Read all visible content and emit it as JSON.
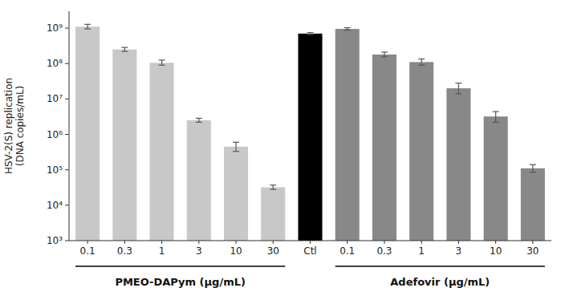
{
  "chart_data": {
    "type": "bar",
    "categories": [
      "0.1",
      "0.3",
      "1",
      "3",
      "10",
      "30",
      "Ctl",
      "0.1",
      "0.3",
      "1",
      "3",
      "10",
      "30"
    ],
    "values": [
      1100000000.0,
      250000000.0,
      105000000.0,
      2500000.0,
      450000.0,
      32000.0,
      700000000.0,
      950000000.0,
      180000000.0,
      110000000.0,
      20000000.0,
      3200000.0,
      110000.0
    ],
    "error_upper": [
      180000000.0,
      35000000.0,
      20000000.0,
      350000.0,
      150000.0,
      5000.0,
      50000000.0,
      80000000.0,
      30000000.0,
      25000000.0,
      8000000.0,
      1200000.0,
      30000.0
    ],
    "error_lower": [
      150000000.0,
      30000000.0,
      15000000.0,
      300000.0,
      120000.0,
      4000.0,
      40000000.0,
      70000000.0,
      25000000.0,
      20000000.0,
      6000000.0,
      1000000.0,
      25000.0
    ],
    "colors": [
      "#c8c8c8",
      "#c8c8c8",
      "#c8c8c8",
      "#c8c8c8",
      "#c8c8c8",
      "#c8c8c8",
      "#000000",
      "#888888",
      "#888888",
      "#888888",
      "#888888",
      "#888888",
      "#888888"
    ],
    "y_label": "HSV-2(S) replication\n(DNA copies/mL)",
    "log": "y",
    "ylim": [
      1000,
      3000000000.0
    ],
    "yticks": [
      {
        "value": 1000,
        "label": "10³"
      },
      {
        "value": 10000,
        "label": "10⁴"
      },
      {
        "value": 100000,
        "label": "10⁵"
      },
      {
        "value": 1000000,
        "label": "10⁶"
      },
      {
        "value": 10000000,
        "label": "10⁷"
      },
      {
        "value": 100000000,
        "label": "10⁸"
      },
      {
        "value": 1000000000,
        "label": "10⁹"
      }
    ],
    "annotations": [
      "PMEO-DAPym (μg/mL)",
      "Adefovir (μg/mL)"
    ],
    "grid": false
  }
}
